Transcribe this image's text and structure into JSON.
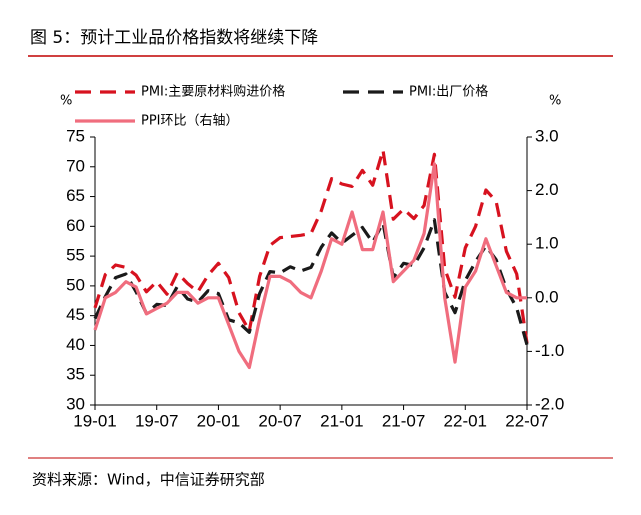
{
  "chart_data": {
    "type": "line",
    "title": "图 5：预计工业品价格指数将继续下降",
    "source": "资料来源：Wind，中信证券研究部",
    "y_unit": "%",
    "y2_unit": "%",
    "categories": [
      "19-01",
      null,
      null,
      null,
      null,
      null,
      "19-07",
      null,
      null,
      null,
      null,
      null,
      "20-01",
      null,
      null,
      null,
      null,
      null,
      "20-07",
      null,
      null,
      null,
      null,
      null,
      "21-01",
      null,
      null,
      null,
      null,
      null,
      "21-07",
      null,
      null,
      null,
      null,
      null,
      "22-01",
      null,
      null,
      null,
      null,
      null,
      "22-07"
    ],
    "series": [
      {
        "name": "PMI:主要原材料购进价格",
        "color": "#d7121f",
        "line_style": "dashed",
        "values": [
          46.3,
          51.9,
          53.5,
          53.1,
          51.8,
          49.0,
          50.7,
          48.6,
          52.2,
          50.4,
          49.0,
          51.8,
          53.8,
          51.4,
          45.5,
          42.5,
          51.6,
          56.8,
          58.1,
          58.3,
          58.5,
          58.8,
          62.6,
          68.0,
          67.1,
          66.7,
          69.4,
          66.9,
          72.8,
          61.2,
          62.9,
          61.3,
          63.5,
          72.1,
          52.9,
          48.1,
          56.4,
          60.0,
          66.1,
          64.2,
          55.8,
          52.0,
          40.4
        ]
      },
      {
        "name": "PMI:出厂价格",
        "color": "#1a1a1a",
        "line_style": "dashed",
        "values": [
          44.5,
          48.2,
          51.4,
          52.0,
          49.0,
          45.4,
          46.9,
          46.7,
          49.9,
          47.8,
          47.3,
          49.2,
          48.7,
          44.3,
          43.8,
          42.2,
          48.7,
          52.4,
          52.2,
          53.2,
          52.5,
          53.1,
          56.5,
          58.9,
          57.2,
          58.5,
          59.8,
          57.3,
          60.6,
          51.4,
          53.8,
          53.4,
          56.4,
          61.1,
          48.9,
          45.5,
          50.9,
          54.1,
          56.7,
          54.4,
          49.5,
          46.3,
          40.1
        ]
      },
      {
        "name": "PPI环比（右轴）",
        "color": "#f06d7e",
        "line_style": "solid",
        "axis": "y2",
        "values": [
          -0.6,
          0.0,
          0.1,
          0.3,
          0.2,
          -0.3,
          -0.2,
          -0.1,
          0.1,
          0.1,
          -0.1,
          0.0,
          0.0,
          -0.5,
          -1.0,
          -1.3,
          -0.4,
          0.4,
          0.4,
          0.3,
          0.1,
          0.0,
          0.5,
          1.1,
          1.0,
          1.6,
          0.9,
          0.9,
          1.6,
          0.3,
          0.5,
          0.7,
          1.2,
          2.5,
          0.0,
          -1.2,
          0.2,
          0.5,
          1.1,
          0.6,
          0.1,
          0.0,
          0.0
        ]
      }
    ],
    "ylim": [
      30,
      75
    ],
    "yticks": [
      30,
      35,
      40,
      45,
      50,
      55,
      60,
      65,
      70,
      75
    ],
    "y2lim": [
      -2,
      3
    ],
    "y2ticks": [
      {
        "value": -2,
        "label": "-2.0"
      },
      {
        "value": -1,
        "label": "-1.0"
      },
      {
        "value": 0,
        "label": "0.0"
      },
      {
        "value": 1,
        "label": "1.0"
      },
      {
        "value": 2,
        "label": "2.0"
      },
      {
        "value": 3,
        "label": "3.0"
      }
    ]
  }
}
